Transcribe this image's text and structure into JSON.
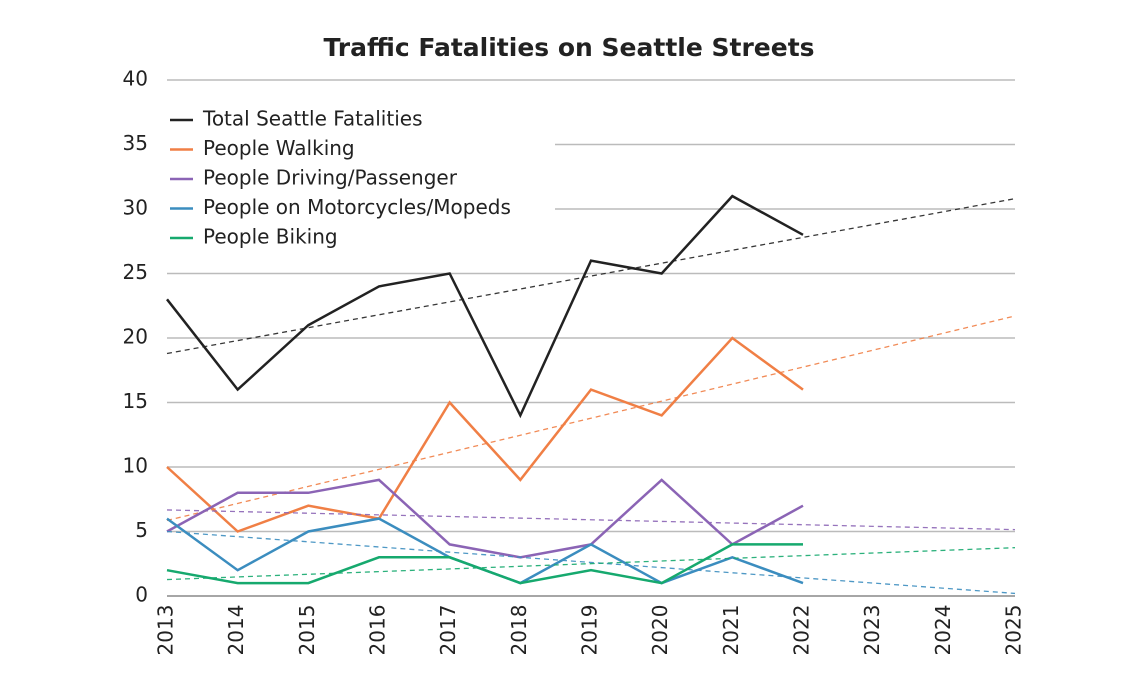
{
  "chart_data": {
    "type": "line",
    "title": "Traffic Fatalities on Seattle Streets",
    "x": [
      "2013",
      "2014",
      "2015",
      "2016",
      "2017",
      "2018",
      "2019",
      "2020",
      "2021",
      "2022",
      "2023",
      "2024",
      "2025"
    ],
    "series": [
      {
        "name": "Total Seattle Fatalities",
        "color": "#222222",
        "values": [
          23,
          16,
          21,
          24,
          25,
          14,
          26,
          25,
          31,
          28,
          null,
          null,
          null
        ]
      },
      {
        "name": "People Walking",
        "color": "#f07f45",
        "values": [
          10,
          5,
          7,
          6,
          15,
          9,
          16,
          14,
          20,
          16,
          null,
          null,
          null
        ]
      },
      {
        "name": "People Driving/Passenger",
        "color": "#8b64b5",
        "values": [
          5,
          8,
          8,
          9,
          4,
          3,
          4,
          9,
          4,
          7,
          null,
          null,
          null
        ]
      },
      {
        "name": "People on Motorcycles/Mopeds",
        "color": "#3b8dbf",
        "values": [
          6,
          2,
          5,
          6,
          3,
          1,
          4,
          1,
          3,
          1,
          null,
          null,
          null
        ]
      },
      {
        "name": "People Biking",
        "color": "#16a96e",
        "values": [
          2,
          1,
          1,
          3,
          3,
          1,
          2,
          1,
          4,
          4,
          null,
          null,
          null
        ]
      }
    ],
    "ylim": [
      0,
      40
    ],
    "yticks": [
      0,
      5,
      10,
      15,
      20,
      25,
      30,
      35,
      40
    ],
    "grid": true,
    "trendlines": true,
    "legend": "upper left"
  }
}
